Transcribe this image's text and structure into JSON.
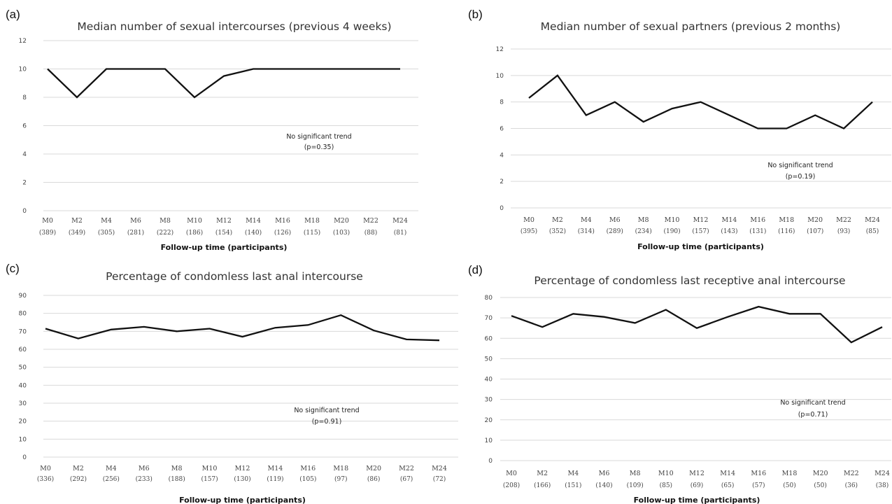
{
  "chart_data": [
    {
      "type": "line",
      "panel_label": "(a)",
      "title": "Median number of sexual intercourses (previous 4 weeks)",
      "xlabel": "Follow-up time (participants)",
      "ylabel": "",
      "categories": [
        "M0",
        "M2",
        "M4",
        "M6",
        "M8",
        "M10",
        "M12",
        "M14",
        "M16",
        "M18",
        "M20",
        "M22",
        "M24"
      ],
      "participants": [
        "(389)",
        "(349)",
        "(305)",
        "(281)",
        "(222)",
        "(186)",
        "(154)",
        "(140)",
        "(126)",
        "(115)",
        "(103)",
        "(88)",
        "(81)"
      ],
      "series": [
        {
          "values": [
            10,
            8,
            10,
            10,
            10,
            8,
            9.5,
            10,
            10,
            10,
            10,
            10,
            10
          ]
        }
      ],
      "ylim": [
        0,
        12
      ],
      "yticks": [
        0,
        2,
        4,
        6,
        8,
        10,
        12
      ],
      "grid": true,
      "annotation": [
        "No significant trend",
        "(p=0.35)"
      ]
    },
    {
      "type": "line",
      "panel_label": "(b)",
      "title": "Median number of sexual partners (previous 2 months)",
      "xlabel": "Follow-up time (participants)",
      "ylabel": "",
      "categories": [
        "M0",
        "M2",
        "M4",
        "M6",
        "M8",
        "M10",
        "M12",
        "M14",
        "M16",
        "M18",
        "M20",
        "M22",
        "M24"
      ],
      "participants": [
        "(395)",
        "(352)",
        "(314)",
        "(289)",
        "(234)",
        "(190)",
        "(157)",
        "(143)",
        "(131)",
        "(116)",
        "(107)",
        "(93)",
        "(85)"
      ],
      "series": [
        {
          "values": [
            8.3,
            10,
            7,
            8,
            6.5,
            7.5,
            8,
            7,
            6,
            6,
            7,
            6,
            8
          ]
        }
      ],
      "ylim": [
        0,
        12
      ],
      "yticks": [
        0,
        2,
        4,
        6,
        8,
        10,
        12
      ],
      "grid": true,
      "annotation": [
        "No significant trend",
        "(p=0.19)"
      ]
    },
    {
      "type": "line",
      "panel_label": "(c)",
      "title": "Percentage of condomless last anal intercourse",
      "xlabel": "Follow-up time (participants)",
      "ylabel": "",
      "categories": [
        "M0",
        "M2",
        "M4",
        "M6",
        "M8",
        "M10",
        "M12",
        "M14",
        "M16",
        "M18",
        "M20",
        "M22",
        "M24"
      ],
      "participants": [
        "(336)",
        "(292)",
        "(256)",
        "(233)",
        "(188)",
        "(157)",
        "(130)",
        "(119)",
        "(105)",
        "(97)",
        "(86)",
        "(67)",
        "(72)"
      ],
      "series": [
        {
          "values": [
            71.5,
            66,
            71,
            72.5,
            70,
            71.5,
            67,
            72,
            73.5,
            79,
            70.5,
            65.5,
            65
          ]
        }
      ],
      "ylim": [
        0,
        90
      ],
      "yticks": [
        0,
        10,
        20,
        30,
        40,
        50,
        60,
        70,
        80,
        90
      ],
      "grid": true,
      "annotation": [
        "No significant trend",
        "(p=0.91)"
      ]
    },
    {
      "type": "line",
      "panel_label": "(d)",
      "title": "Percentage of condomless last receptive anal intercourse",
      "xlabel": "Follow-up time (participants)",
      "ylabel": "",
      "categories": [
        "M0",
        "M2",
        "M4",
        "M6",
        "M8",
        "M10",
        "M12",
        "M14",
        "M16",
        "M18",
        "M20",
        "M22",
        "M24"
      ],
      "participants": [
        "(208)",
        "(166)",
        "(151)",
        "(140)",
        "(109)",
        "(85)",
        "(69)",
        "(65)",
        "(57)",
        "(50)",
        "(50)",
        "(36)",
        "(38)"
      ],
      "series": [
        {
          "values": [
            71,
            65.5,
            72,
            70.5,
            67.5,
            74,
            65,
            70.5,
            75.5,
            72,
            72,
            58,
            65.5
          ]
        }
      ],
      "ylim": [
        0,
        80
      ],
      "yticks": [
        0,
        10,
        20,
        30,
        40,
        50,
        60,
        70,
        80
      ],
      "grid": true,
      "annotation": [
        "No significant trend",
        "(p=0.71)"
      ]
    }
  ]
}
